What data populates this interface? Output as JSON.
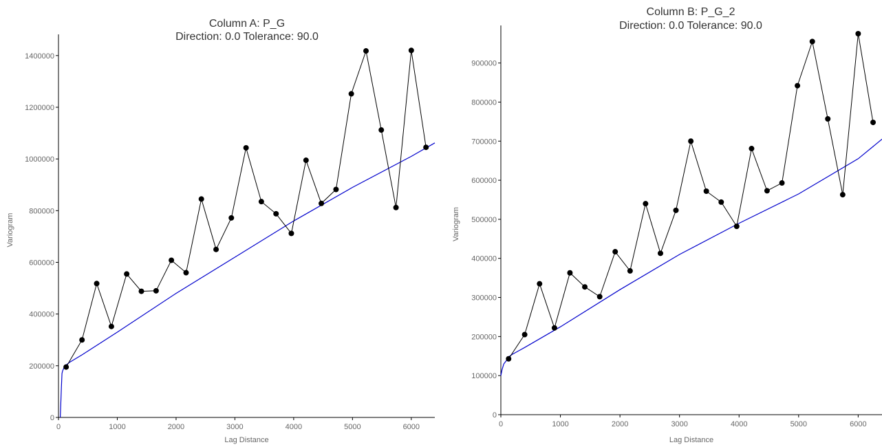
{
  "chart_data": [
    {
      "type": "scatter",
      "title": "Column A:  P_G",
      "subtitle": "Direction: 0.0   Tolerance: 90.0",
      "xlabel": "Lag Distance",
      "ylabel": "Variogram",
      "xlim": [
        0,
        6400
      ],
      "ylim": [
        0,
        1450000
      ],
      "xticks": [
        0,
        1000,
        2000,
        3000,
        4000,
        5000,
        6000
      ],
      "yticks": [
        0,
        200000,
        400000,
        600000,
        800000,
        1000000,
        1200000,
        1400000
      ],
      "xtick_labels": [
        "0",
        "1000",
        "2000",
        "3000",
        "4000",
        "5000",
        "6000"
      ],
      "ytick_labels": [
        "0",
        "200000",
        "400000",
        "600000",
        "800000",
        "1000000",
        "1200000",
        "1400000"
      ],
      "grid": false,
      "series": [
        {
          "kind": "empirical",
          "color": "#000000",
          "x": [
            130,
            400,
            650,
            900,
            1160,
            1410,
            1660,
            1920,
            2170,
            2430,
            2680,
            2940,
            3190,
            3450,
            3700,
            3960,
            4210,
            4470,
            4720,
            4980,
            5230,
            5490,
            5740,
            6000,
            6250
          ],
          "y": [
            195000,
            300000,
            518000,
            352000,
            555000,
            488000,
            490000,
            608000,
            560000,
            845000,
            650000,
            772000,
            1043000,
            835000,
            788000,
            712000,
            995000,
            828000,
            882000,
            1252000,
            1418000,
            1112000,
            812000,
            1420000,
            1045000
          ]
        },
        {
          "kind": "model",
          "color": "#0000cc",
          "x": [
            30,
            50,
            60,
            70,
            80,
            100,
            130,
            200,
            400,
            1000,
            2000,
            3000,
            4000,
            5000,
            6000,
            6400
          ],
          "y": [
            0,
            120000,
            170000,
            180000,
            185000,
            195000,
            203000,
            215000,
            242000,
            330000,
            480000,
            620000,
            760000,
            890000,
            1010000,
            1062000
          ]
        }
      ]
    },
    {
      "type": "scatter",
      "title": "Column B:  P_G_2",
      "subtitle": "Direction: 0.0   Tolerance: 90.0",
      "xlabel": "Lag Distance",
      "ylabel": "Variogram",
      "xlim": [
        0,
        6400
      ],
      "ylim": [
        0,
        975000
      ],
      "xticks": [
        0,
        1000,
        2000,
        3000,
        4000,
        5000,
        6000
      ],
      "yticks": [
        0,
        100000,
        200000,
        300000,
        400000,
        500000,
        600000,
        700000,
        800000,
        900000
      ],
      "xtick_labels": [
        "0",
        "1000",
        "2000",
        "3000",
        "4000",
        "5000",
        "6000"
      ],
      "ytick_labels": [
        "0",
        "100000",
        "200000",
        "300000",
        "400000",
        "500000",
        "600000",
        "700000",
        "800000",
        "900000"
      ],
      "grid": false,
      "series": [
        {
          "kind": "empirical",
          "color": "#000000",
          "x": [
            130,
            400,
            650,
            900,
            1160,
            1410,
            1660,
            1920,
            2170,
            2430,
            2680,
            2940,
            3190,
            3450,
            3700,
            3960,
            4210,
            4470,
            4720,
            4980,
            5230,
            5490,
            5740,
            6000,
            6250
          ],
          "y": [
            143000,
            205000,
            335000,
            222000,
            363000,
            327000,
            302000,
            417000,
            368000,
            540000,
            413000,
            523000,
            700000,
            572000,
            544000,
            482000,
            681000,
            573000,
            593000,
            842000,
            955000,
            757000,
            563000,
            975000,
            748000
          ]
        },
        {
          "kind": "model",
          "color": "#0000cc",
          "x": [
            0,
            20,
            50,
            100,
            130,
            200,
            400,
            1000,
            2000,
            3000,
            4000,
            5000,
            6000,
            6400
          ],
          "y": [
            100000,
            115000,
            130000,
            140000,
            148000,
            155000,
            172000,
            225000,
            320000,
            410000,
            490000,
            565000,
            655000,
            705000
          ]
        }
      ]
    }
  ]
}
